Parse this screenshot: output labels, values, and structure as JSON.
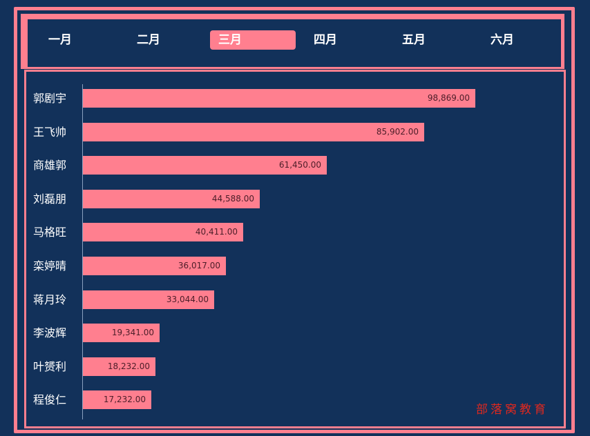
{
  "tabs": {
    "items": [
      {
        "label": "一月"
      },
      {
        "label": "二月"
      },
      {
        "label": "三月"
      },
      {
        "label": "四月"
      },
      {
        "label": "五月"
      },
      {
        "label": "六月"
      }
    ],
    "active_index": 2
  },
  "watermark": "部落窝教育",
  "colors": {
    "background": "#12315a",
    "accent": "#ff7f8f",
    "watermark": "#e0281e"
  },
  "chart_data": {
    "type": "bar",
    "orientation": "horizontal",
    "categories": [
      "郭剧宇",
      "王飞帅",
      "商雄郭",
      "刘磊朋",
      "马格旺",
      "栾婷晴",
      "蒋月玲",
      "李波辉",
      "叶赟利",
      "程俊仁"
    ],
    "values": [
      98869,
      85902,
      61450,
      44588,
      40411,
      36017,
      33044,
      19341,
      18232,
      17232
    ],
    "value_labels": [
      "98,869.00",
      "85,902.00",
      "61,450.00",
      "44,588.00",
      "40,411.00",
      "36,017.00",
      "33,044.00",
      "19,341.00",
      "18,232.00",
      "17,232.00"
    ],
    "title": "",
    "xlabel": "",
    "ylabel": "",
    "xlim": [
      0,
      98869
    ],
    "grid": false,
    "legend": "none"
  }
}
